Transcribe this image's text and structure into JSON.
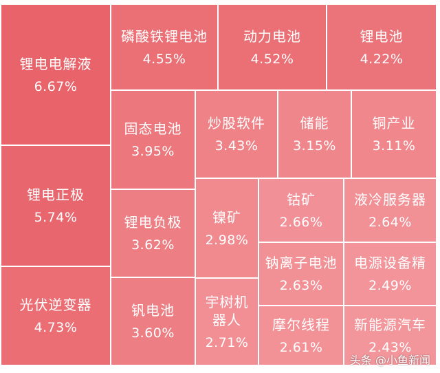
{
  "chart_data": {
    "type": "treemap",
    "title": "",
    "items": [
      {
        "name": "锂电电解液",
        "value": "6.67%",
        "v": 6.67,
        "color": "#e8636a"
      },
      {
        "name": "锂电正极",
        "value": "5.74%",
        "v": 5.74,
        "color": "#e8676e"
      },
      {
        "name": "光伏逆变器",
        "value": "4.73%",
        "v": 4.73,
        "color": "#ea6e74"
      },
      {
        "name": "磷酸铁锂电池",
        "value": "4.55%",
        "v": 4.55,
        "color": "#ea7076"
      },
      {
        "name": "动力电池",
        "value": "4.52%",
        "v": 4.52,
        "color": "#ea7076"
      },
      {
        "name": "锂电池",
        "value": "4.22%",
        "v": 4.22,
        "color": "#eb737a"
      },
      {
        "name": "固态电池",
        "value": "3.95%",
        "v": 3.95,
        "color": "#ec787e"
      },
      {
        "name": "炒股软件",
        "value": "3.43%",
        "v": 3.43,
        "color": "#ee8287"
      },
      {
        "name": "储能",
        "value": "3.15%",
        "v": 3.15,
        "color": "#ef868b"
      },
      {
        "name": "铜产业",
        "value": "3.11%",
        "v": 3.11,
        "color": "#ef878c"
      },
      {
        "name": "锂电负极",
        "value": "3.62%",
        "v": 3.62,
        "color": "#ed7e83"
      },
      {
        "name": "镍矿",
        "value": "2.98%",
        "v": 2.98,
        "color": "#f08a8f"
      },
      {
        "name": "钴矿",
        "value": "2.66%",
        "v": 2.66,
        "color": "#f19096"
      },
      {
        "name": "液冷服务器",
        "value": "2.64%",
        "v": 2.64,
        "color": "#f19196"
      },
      {
        "name": "钠离子电池",
        "value": "2.63%",
        "v": 2.63,
        "color": "#f19196"
      },
      {
        "name": "电源设备精",
        "value": "2.49%",
        "v": 2.49,
        "color": "#f29499"
      },
      {
        "name": "钒电池",
        "value": "3.60%",
        "v": 3.6,
        "color": "#ed7f84"
      },
      {
        "name": "宇树机\n器人",
        "value": "2.71%",
        "v": 2.71,
        "color": "#f18f95"
      },
      {
        "name": "摩尔线程",
        "value": "2.61%",
        "v": 2.61,
        "color": "#f29297"
      },
      {
        "name": "新能源汽车",
        "value": "2.43%",
        "v": 2.43,
        "color": "#f2969b"
      }
    ]
  },
  "watermark": {
    "text": "头条 @小鱼新闻"
  }
}
